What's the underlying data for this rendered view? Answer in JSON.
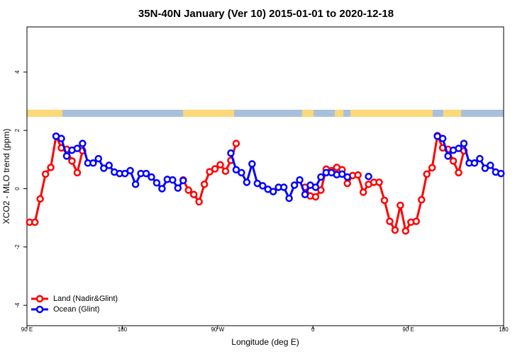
{
  "chart_data": {
    "type": "line",
    "title": "35N-40N January (Ver 10)   2015-01-01 to 2020-12-18",
    "x_label": "Longitude (deg E)",
    "y_label": "XCO2 - MLO trend (ppm)",
    "xlim": [
      90,
      540
    ],
    "ylim": [
      -4.7,
      5.55
    ],
    "xticks": [
      {
        "value": 90,
        "label": "90 E"
      },
      180,
      {
        "value": 270,
        "label": "90 W"
      },
      {
        "value": 360,
        "label": "0"
      },
      {
        "value": 450,
        "label": "90 E"
      },
      {
        "value": 540,
        "label": "180"
      }
    ],
    "yticks": [
      -4,
      -2,
      0,
      2,
      4
    ],
    "legend_position": "bottom-left",
    "x": [
      92.5,
      97.5,
      102.5,
      107.5,
      112.5,
      117.5,
      122.5,
      127.5,
      132.5,
      137.5,
      142.5,
      147.5,
      152.5,
      157.5,
      162.5,
      167.5,
      172.5,
      177.5,
      182.5,
      187.5,
      192.5,
      197.5,
      202.5,
      207.5,
      212.5,
      217.5,
      222.5,
      227.5,
      232.5,
      237.5,
      242.5,
      247.5,
      252.5,
      257.5,
      262.5,
      267.5,
      272.5,
      277.5,
      282.5,
      287.5,
      292.5,
      297.5,
      302.5,
      307.5,
      312.5,
      317.5,
      322.5,
      327.5,
      332.5,
      337.5,
      342.5,
      347.5,
      352.5,
      357.5,
      362.5,
      367.5,
      372.5,
      377.5,
      382.5,
      387.5,
      392.5,
      397.5,
      402.5,
      407.5,
      412.5,
      417.5,
      422.5,
      427.5,
      432.5,
      437.5,
      442.5,
      447.5,
      452.5,
      457.5,
      462.5,
      467.5,
      472.5,
      477.5,
      482.5,
      487.5,
      492.5,
      497.5,
      502.5,
      507.5,
      512.5,
      517.5,
      522.5,
      527.5,
      532.5,
      537.5
    ],
    "series": [
      {
        "name": "Land (Nadir&Glint)",
        "color": "#ff0000",
        "values": [
          -1.15,
          -1.15,
          -0.35,
          0.5,
          0.73,
          1.8,
          1.4,
          1.35,
          0.95,
          0.55,
          1.3,
          null,
          null,
          null,
          null,
          null,
          null,
          null,
          null,
          null,
          null,
          null,
          null,
          null,
          null,
          null,
          null,
          null,
          null,
          0.3,
          -0.05,
          -0.2,
          -0.45,
          0.15,
          0.58,
          0.68,
          0.82,
          0.6,
          0.97,
          1.55,
          null,
          null,
          null,
          null,
          null,
          null,
          null,
          null,
          null,
          null,
          null,
          null,
          0.05,
          -0.25,
          -0.28,
          -0.05,
          0.67,
          0.62,
          0.73,
          0.65,
          0.18,
          0.45,
          0.47,
          -0.12,
          0.15,
          0.22,
          0.22,
          -0.4,
          -1.12,
          -1.42,
          -0.57,
          -1.45,
          -1.15,
          -1.12,
          -0.38,
          0.5,
          0.72,
          1.82,
          1.4,
          1.35,
          0.95,
          0.55,
          1.3,
          null,
          null,
          null,
          null,
          null,
          null,
          null
        ]
      },
      {
        "name": "Ocean (Glint)",
        "color": "#0000ff",
        "values": [
          null,
          null,
          null,
          null,
          null,
          1.8,
          1.72,
          1.12,
          1.32,
          1.38,
          1.55,
          0.88,
          0.88,
          1.03,
          0.7,
          0.8,
          0.57,
          0.52,
          0.52,
          0.62,
          0.15,
          0.52,
          0.52,
          0.4,
          0.2,
          0,
          0.32,
          0.3,
          0.02,
          0.28,
          null,
          null,
          null,
          null,
          null,
          null,
          null,
          null,
          1.22,
          0.65,
          0.55,
          0.22,
          0.85,
          0.18,
          0.1,
          -0.02,
          -0.1,
          0.05,
          0.05,
          -0.33,
          0.12,
          0.3,
          -0.2,
          0.12,
          0.05,
          0.4,
          0.55,
          0.55,
          0.48,
          0.5,
          0.4,
          null,
          null,
          null,
          0.42,
          null,
          null,
          null,
          null,
          null,
          null,
          null,
          null,
          null,
          null,
          null,
          null,
          1.8,
          1.72,
          1.12,
          1.32,
          1.38,
          1.55,
          0.88,
          0.88,
          1.03,
          0.7,
          0.8,
          0.57,
          0.52
        ]
      }
    ]
  }
}
